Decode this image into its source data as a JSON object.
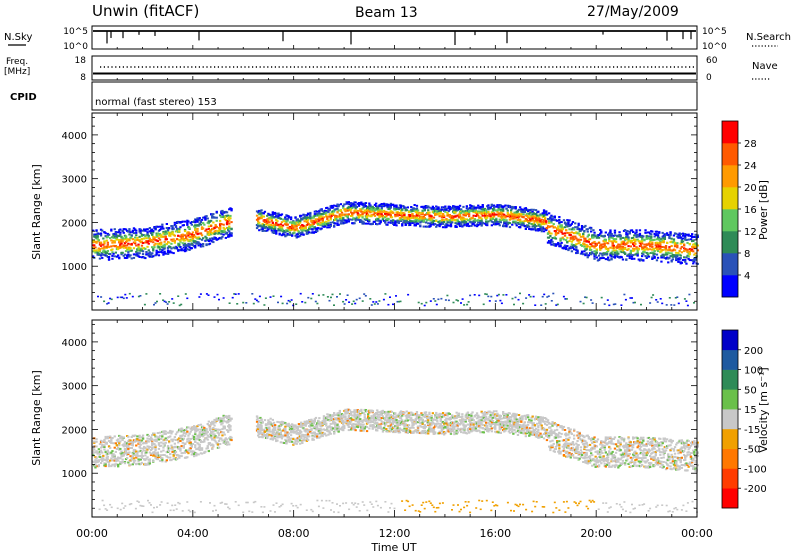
{
  "header": {
    "title": "Unwin (fitACF)",
    "beam": "Beam 13",
    "date": "27/May/2009"
  },
  "strips": {
    "nsky_label": "N.Sky",
    "nsky_ticks": [
      "10^5",
      "10^0"
    ],
    "nsearch_label": "N.Search",
    "nsearch_ticks": [
      "10^5",
      "10^0"
    ],
    "freq_label": "Freq.",
    "freq_unit": "[MHz]",
    "freq_ticks": [
      "18",
      "8"
    ],
    "nave_label": "Nave",
    "nave_ticks": [
      "60",
      "0"
    ],
    "cpid_label": "CPID",
    "cpid_text": "normal (fast stereo) 153"
  },
  "chart_data": [
    {
      "type": "heatmap",
      "panel": "power",
      "ylabel": "Slant Range [km]",
      "yticks": [
        1000,
        2000,
        3000,
        4000
      ],
      "ylim": [
        0,
        4500
      ],
      "xlim_hours": [
        0,
        24
      ],
      "xtick_labels": [
        "00:00",
        "04:00",
        "08:00",
        "12:00",
        "16:00",
        "20:00",
        "00:00"
      ],
      "colorbar": {
        "label": "Power [dB]",
        "ticks": [
          "4",
          "8",
          "12",
          "16",
          "20",
          "24",
          "28"
        ],
        "colors": [
          "#0000ff",
          "#2a52b8",
          "#2e8b57",
          "#5fc85f",
          "#e6d200",
          "#ff9a00",
          "#ff5a00",
          "#ff0000"
        ]
      },
      "scatter_bands": [
        {
          "x": [
            0.0,
            2.0,
            4.0,
            5.5
          ],
          "range_center": [
            1500,
            1550,
            1750,
            2050
          ],
          "range_width": 500
        },
        {
          "x": [
            6.5,
            8.0,
            10.0,
            12.0,
            14.0,
            16.0,
            18.0
          ],
          "range_center": [
            2100,
            1900,
            2250,
            2200,
            2150,
            2200,
            2050
          ],
          "range_width": 350
        },
        {
          "x": [
            18.0,
            20.0,
            22.0,
            24.0
          ],
          "range_center": [
            1900,
            1500,
            1500,
            1400
          ],
          "range_width": 500
        }
      ]
    },
    {
      "type": "heatmap",
      "panel": "velocity",
      "ylabel": "Slant Range [km]",
      "xlabel": "Time UT",
      "yticks": [
        1000,
        2000,
        3000,
        4000
      ],
      "ylim": [
        0,
        4500
      ],
      "xlim_hours": [
        0,
        24
      ],
      "xtick_labels": [
        "00:00",
        "04:00",
        "08:00",
        "12:00",
        "16:00",
        "20:00",
        "00:00"
      ],
      "colorbar": {
        "label": "Velocity [m s⁻¹]",
        "ticks": [
          "200",
          "100",
          "50",
          "15",
          "-15",
          "-50",
          "-100",
          "-200"
        ],
        "colors": [
          "#0000c8",
          "#1e5aa0",
          "#2e8b57",
          "#6ac04a",
          "#c8c8c8",
          "#f0a000",
          "#ff7800",
          "#ff3c00",
          "#ff0000"
        ]
      },
      "scatter_bands": [
        {
          "x": [
            0.0,
            2.0,
            4.0,
            5.5
          ],
          "range_center": [
            1500,
            1550,
            1750,
            2050
          ],
          "range_width": 500
        },
        {
          "x": [
            6.5,
            8.0,
            10.0,
            12.0,
            14.0,
            16.0,
            18.0
          ],
          "range_center": [
            2100,
            1900,
            2250,
            2200,
            2150,
            2200,
            2050
          ],
          "range_width": 350
        },
        {
          "x": [
            18.0,
            20.0,
            22.0,
            24.0
          ],
          "range_center": [
            1900,
            1500,
            1500,
            1400
          ],
          "range_width": 500
        }
      ]
    }
  ]
}
